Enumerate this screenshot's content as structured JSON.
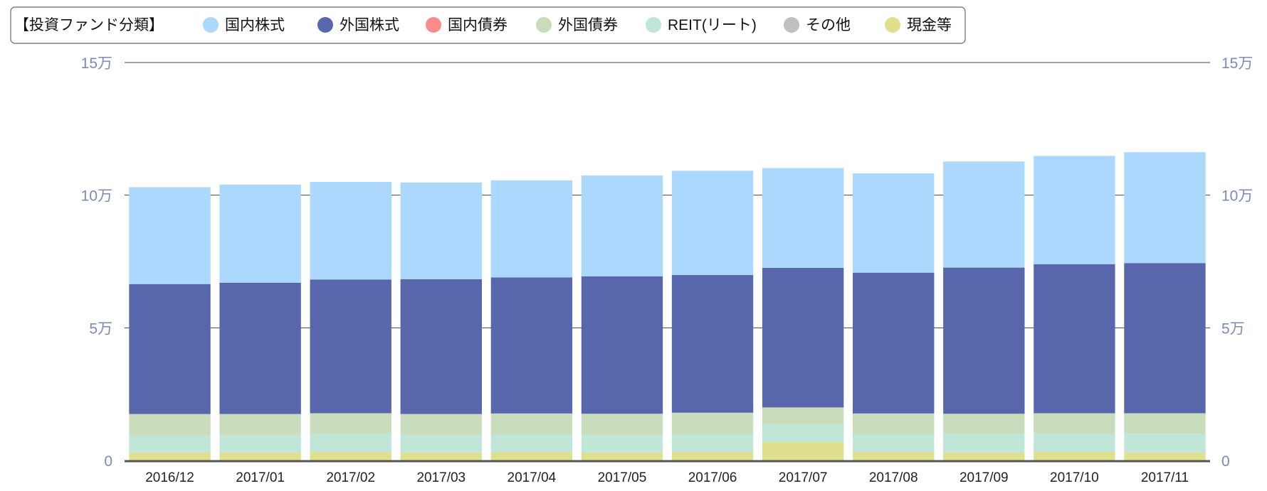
{
  "chart_data": {
    "type": "bar",
    "stacked": true,
    "legend": {
      "title": "【投資ファンド分類】",
      "placement": "top-left"
    },
    "categories": [
      "2016/12",
      "2017/01",
      "2017/02",
      "2017/03",
      "2017/04",
      "2017/05",
      "2017/06",
      "2017/07",
      "2017/08",
      "2017/09",
      "2017/10",
      "2017/11"
    ],
    "series": [
      {
        "name": "現金等",
        "color": "#e0df8e",
        "values": [
          3000,
          3000,
          3200,
          3000,
          3200,
          3000,
          3200,
          7000,
          3200,
          3000,
          3300,
          3000
        ]
      },
      {
        "name": "その他",
        "color": "#c0c0c0",
        "values": [
          0,
          0,
          0,
          0,
          0,
          0,
          0,
          0,
          0,
          0,
          0,
          0
        ]
      },
      {
        "name": "REIT(リート)",
        "color": "#bfe6d7",
        "values": [
          6500,
          6700,
          6800,
          6700,
          6600,
          6700,
          6600,
          6600,
          6700,
          7000,
          6900,
          7100
        ]
      },
      {
        "name": "外国債券",
        "color": "#c9dcbc",
        "values": [
          8000,
          7800,
          7800,
          7800,
          7900,
          7900,
          8200,
          6400,
          7800,
          7600,
          7600,
          7700
        ]
      },
      {
        "name": "国内債券",
        "color": "#f98b8b",
        "values": [
          0,
          0,
          0,
          0,
          0,
          0,
          0,
          0,
          0,
          0,
          0,
          0
        ]
      },
      {
        "name": "外国株式",
        "color": "#5866ac",
        "values": [
          49000,
          49500,
          50400,
          50800,
          51300,
          51800,
          51900,
          52600,
          53100,
          55100,
          56200,
          56600
        ]
      },
      {
        "name": "国内株式",
        "color": "#acd8fd",
        "values": [
          36500,
          37000,
          36800,
          36500,
          36600,
          38000,
          39300,
          37600,
          37400,
          40000,
          40800,
          41800
        ]
      }
    ],
    "legend_order": [
      "国内株式",
      "外国株式",
      "国内債券",
      "外国債券",
      "REIT(リート)",
      "その他",
      "現金等"
    ],
    "y_ticks": [
      {
        "value": 0,
        "label": "0"
      },
      {
        "value": 50000,
        "label": "5万"
      },
      {
        "value": 100000,
        "label": "10万"
      },
      {
        "value": 150000,
        "label": "15万"
      }
    ],
    "ylim": [
      0,
      150000
    ],
    "grid": true,
    "colors": {
      "tick_label": "#7b8ab8",
      "grid": "#444444",
      "axis": "#555555"
    }
  }
}
